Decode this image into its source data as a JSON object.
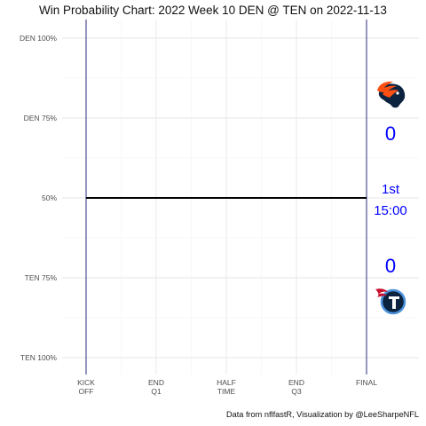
{
  "chart_data": {
    "type": "line",
    "title": "Win Probability Chart: 2022 Week 10 DEN @ TEN on 2022-11-13",
    "caption": "Data from nflfastR, Visualization by @LeeSharpeNFL",
    "x_ticks": [
      {
        "value": 0,
        "lines": [
          "KICK",
          "OFF"
        ]
      },
      {
        "value": 900,
        "lines": [
          "END",
          "Q1"
        ]
      },
      {
        "value": 1800,
        "lines": [
          "HALF",
          "TIME"
        ]
      },
      {
        "value": 2700,
        "lines": [
          "END",
          "Q3"
        ]
      },
      {
        "value": 3600,
        "lines": [
          "FINAL"
        ]
      }
    ],
    "y_ticks": [
      {
        "value": 0,
        "label": "DEN 100%"
      },
      {
        "value": 0.25,
        "label": "DEN 75%"
      },
      {
        "value": 0.5,
        "label": "50%"
      },
      {
        "value": 0.75,
        "label": "TEN 75%"
      },
      {
        "value": 1,
        "label": "TEN 100%"
      }
    ],
    "xlim": [
      0,
      3600
    ],
    "ylim": [
      0,
      1
    ],
    "grid": true,
    "series": [
      {
        "x": [
          0,
          3600
        ],
        "y": [
          0.5,
          0.5
        ],
        "color": "#000000"
      }
    ],
    "teams": {
      "away": {
        "abbr": "DEN",
        "score": "0",
        "logo": "broncos-logo",
        "color": "#FB4F14"
      },
      "home": {
        "abbr": "TEN",
        "score": "0",
        "logo": "titans-logo",
        "color": "#0C2340"
      }
    },
    "game_state": {
      "quarter": "1st",
      "clock": "15:00"
    },
    "score_color": "#0000FF",
    "boundary_line_color": "#191970"
  }
}
